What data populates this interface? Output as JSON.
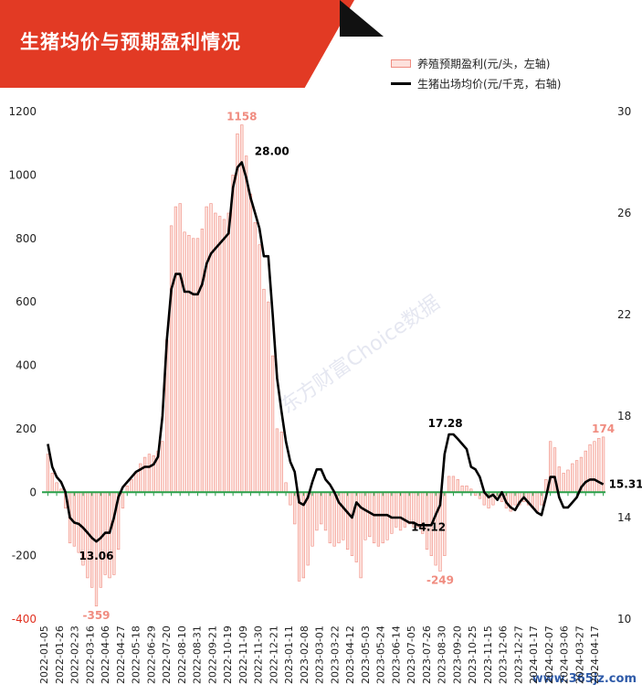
{
  "title": "生猪均价与预期盈利情况",
  "legend": {
    "bar": "养殖预期盈利(元/头，左轴)",
    "line": "生猪出场均价(元/千克，右轴)"
  },
  "watermark": "东方财富Choice数据",
  "site": "www.365jz.com",
  "colors": {
    "bar_fill": "#fde1dc",
    "bar_stroke": "#f08c80",
    "line": "#000000",
    "zero_line": "#2aa04a",
    "banner": "#e23a24"
  },
  "chart_data": {
    "type": "bar",
    "title": "生猪均价与预期盈利情况",
    "y_left": {
      "min": -400,
      "max": 1200,
      "ticks": [
        1200,
        1000,
        800,
        600,
        400,
        200,
        0,
        -200,
        -400
      ]
    },
    "y_right": {
      "min": 10,
      "max": 30,
      "ticks": [
        30,
        26,
        22,
        18,
        14,
        10
      ]
    },
    "x_ticks": [
      "2022-01-05",
      "2022-01-26",
      "2022-02-23",
      "2022-03-16",
      "2022-04-06",
      "2022-04-27",
      "2022-05-18",
      "2022-06-29",
      "2022-07-20",
      "2022-08-10",
      "2022-08-31",
      "2022-09-21",
      "2022-10-19",
      "2022-11-09",
      "2022-11-30",
      "2022-12-21",
      "2023-01-11",
      "2023-02-08",
      "2023-03-01",
      "2023-03-22",
      "2023-04-12",
      "2023-05-03",
      "2023-05-24",
      "2023-06-14",
      "2023-07-05",
      "2023-07-26",
      "2023-08-30",
      "2023-09-20",
      "2023-10-25",
      "2023-11-15",
      "2023-12-06",
      "2023-12-27",
      "2024-01-17",
      "2024-02-07",
      "2024-03-06",
      "2024-03-27",
      "2024-04-17"
    ],
    "series": [
      {
        "name": "养殖预期盈利(元/头，左轴)",
        "axis": "left",
        "kind": "bar",
        "values": [
          120,
          60,
          30,
          10,
          -50,
          -160,
          -170,
          -190,
          -230,
          -270,
          -300,
          -359,
          -300,
          -260,
          -270,
          -260,
          -180,
          -50,
          20,
          40,
          60,
          90,
          110,
          120,
          115,
          130,
          160,
          480,
          840,
          900,
          910,
          820,
          810,
          800,
          800,
          830,
          900,
          910,
          880,
          870,
          860,
          880,
          1000,
          1130,
          1158,
          1060,
          940,
          850,
          780,
          640,
          600,
          430,
          200,
          190,
          30,
          -40,
          -100,
          -280,
          -270,
          -230,
          -170,
          -120,
          -100,
          -120,
          -160,
          -170,
          -160,
          -150,
          -180,
          -200,
          -220,
          -270,
          -150,
          -140,
          -160,
          -170,
          -160,
          -150,
          -130,
          -110,
          -120,
          -110,
          -100,
          -110,
          -110,
          -130,
          -180,
          -200,
          -230,
          -249,
          -200,
          50,
          50,
          40,
          20,
          20,
          10,
          -10,
          -20,
          -40,
          -50,
          -40,
          -20,
          -30,
          -50,
          -60,
          -40,
          -40,
          -30,
          -40,
          -50,
          -60,
          -40,
          40,
          160,
          140,
          80,
          60,
          70,
          90,
          100,
          110,
          130,
          150,
          160,
          170,
          174
        ]
      },
      {
        "name": "生猪出场均价(元/千克，右轴)",
        "axis": "right",
        "kind": "line",
        "values": [
          16.9,
          16.0,
          15.6,
          15.4,
          15.0,
          14.0,
          13.8,
          13.75,
          13.6,
          13.4,
          13.2,
          13.06,
          13.2,
          13.4,
          13.4,
          14.0,
          14.8,
          15.2,
          15.4,
          15.6,
          15.8,
          15.9,
          16.0,
          16.0,
          16.1,
          16.4,
          18.0,
          21.0,
          23.0,
          23.6,
          23.6,
          22.9,
          22.9,
          22.8,
          22.8,
          23.2,
          24.0,
          24.4,
          24.6,
          24.8,
          25.0,
          25.2,
          27.0,
          27.8,
          28.0,
          27.4,
          26.6,
          26.0,
          25.4,
          24.3,
          24.3,
          22.0,
          19.5,
          18.2,
          17.0,
          16.2,
          15.8,
          14.6,
          14.5,
          14.8,
          15.4,
          15.9,
          15.9,
          15.5,
          15.3,
          15.0,
          14.6,
          14.4,
          14.2,
          14.0,
          14.6,
          14.4,
          14.3,
          14.2,
          14.1,
          14.1,
          14.1,
          14.1,
          14.0,
          14.0,
          14.0,
          13.9,
          13.8,
          13.8,
          13.7,
          13.7,
          13.7,
          13.7,
          14.12,
          14.5,
          16.5,
          17.28,
          17.28,
          17.1,
          16.9,
          16.7,
          16.0,
          15.9,
          15.6,
          15.0,
          14.8,
          14.9,
          14.7,
          15.0,
          14.6,
          14.4,
          14.3,
          14.6,
          14.8,
          14.6,
          14.4,
          14.2,
          14.1,
          14.8,
          15.6,
          15.6,
          14.8,
          14.4,
          14.4,
          14.6,
          14.8,
          15.2,
          15.4,
          15.5,
          15.5,
          15.4,
          15.31
        ]
      }
    ],
    "annotations": [
      {
        "series": 0,
        "index": 44,
        "text": "1158"
      },
      {
        "series": 0,
        "index": 11,
        "text": "-359"
      },
      {
        "series": 0,
        "index": 89,
        "text": "-249"
      },
      {
        "series": 0,
        "index": 126,
        "text": "174"
      },
      {
        "series": 1,
        "index": 44,
        "text": "28.00"
      },
      {
        "series": 1,
        "index": 11,
        "text": "13.06"
      },
      {
        "series": 1,
        "index": 88,
        "text": "14.12"
      },
      {
        "series": 1,
        "index": 91,
        "text": "17.28"
      },
      {
        "series": 1,
        "index": 126,
        "text": "15.31"
      }
    ]
  }
}
